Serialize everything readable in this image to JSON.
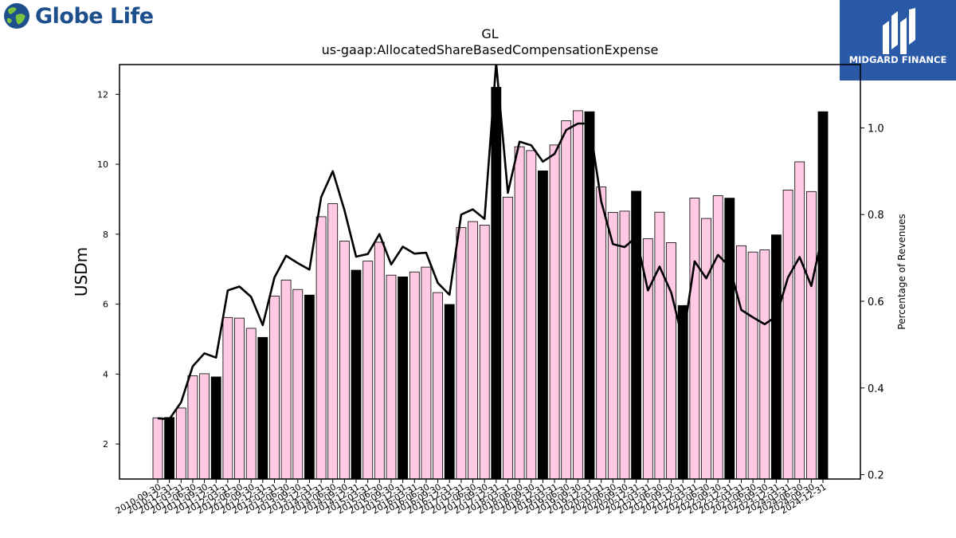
{
  "brand": {
    "left_name": "Globe Life",
    "right_name": "MIDGARD FINANCE"
  },
  "chart_data": {
    "type": "bar",
    "title": "GL",
    "subtitle": "us-gaap:AllocatedShareBasedCompensationExpense",
    "ylabel": "USDm",
    "y2label": "Percentage of Revenues",
    "ylim": [
      1.0,
      12.85
    ],
    "y2lim": [
      0.19,
      1.146
    ],
    "yticks": [
      2,
      4,
      6,
      8,
      10,
      12
    ],
    "y2ticks": [
      "0.2",
      "0.4",
      "0.6",
      "0.8",
      "1.0"
    ],
    "colors": {
      "quarter_bar": "#ffc9e4",
      "annual_bar": "#000000",
      "line": "#000000"
    },
    "categories": [
      "2010-09-30",
      "2010-12-31",
      "2011-03-31",
      "2011-06-30",
      "2011-09-30",
      "2011-12-31",
      "2012-03-31",
      "2012-06-30",
      "2012-09-30",
      "2012-12-31",
      "2013-03-31",
      "2013-06-30",
      "2013-09-30",
      "2013-12-31",
      "2014-03-31",
      "2014-06-30",
      "2014-09-30",
      "2014-12-31",
      "2015-03-31",
      "2015-06-30",
      "2015-09-30",
      "2015-12-31",
      "2016-03-31",
      "2016-06-30",
      "2016-09-30",
      "2016-12-31",
      "2017-03-31",
      "2017-06-30",
      "2017-09-30",
      "2017-12-31",
      "2018-03-31",
      "2018-06-30",
      "2018-09-30",
      "2018-12-31",
      "2019-03-31",
      "2019-06-30",
      "2019-09-30",
      "2019-12-31",
      "2020-03-31",
      "2020-06-30",
      "2020-09-30",
      "2020-12-31",
      "2021-03-31",
      "2021-06-30",
      "2021-09-30",
      "2021-12-31",
      "2022-03-31",
      "2022-06-30",
      "2022-09-30",
      "2022-12-31",
      "2023-03-31",
      "2023-06-30",
      "2023-09-30",
      "2023-12-31",
      "2024-03-31",
      "2024-06-30",
      "2024-09-30",
      "2024-12-31"
    ],
    "series": [
      {
        "values": [
          2.75,
          2.76,
          3.03,
          3.95,
          4.01,
          3.92,
          5.62,
          5.6,
          5.31,
          5.05,
          6.23,
          6.69,
          6.42,
          6.26,
          8.5,
          8.87,
          7.8,
          6.97,
          7.23,
          7.77,
          6.83,
          6.78,
          6.92,
          7.06,
          6.33,
          5.99,
          8.19,
          8.36,
          8.26,
          12.2,
          9.06,
          10.5,
          10.39,
          9.81,
          10.55,
          11.24,
          11.53,
          11.5,
          9.35,
          8.62,
          8.66,
          9.23,
          7.87,
          8.63,
          7.76,
          5.96,
          9.03,
          8.45,
          9.1,
          9.03,
          7.67,
          7.49,
          7.55,
          7.98,
          9.26,
          10.07,
          9.22,
          11.5
        ],
        "annual": [
          false,
          true,
          false,
          false,
          false,
          true,
          false,
          false,
          false,
          true,
          false,
          false,
          false,
          true,
          false,
          false,
          false,
          true,
          false,
          false,
          false,
          true,
          false,
          false,
          false,
          true,
          false,
          false,
          false,
          true,
          false,
          false,
          false,
          true,
          false,
          false,
          false,
          true,
          false,
          false,
          false,
          true,
          false,
          false,
          false,
          true,
          false,
          false,
          false,
          true,
          false,
          false,
          false,
          true,
          false,
          false,
          false,
          true
        ]
      },
      {
        "values": [
          0.33,
          0.328,
          0.367,
          0.45,
          0.48,
          0.47,
          0.625,
          0.634,
          0.61,
          0.545,
          0.655,
          0.705,
          0.688,
          0.673,
          0.84,
          0.9,
          0.81,
          0.703,
          0.709,
          0.755,
          0.685,
          0.726,
          0.71,
          0.712,
          0.642,
          0.615,
          0.8,
          0.812,
          0.79,
          1.15,
          0.85,
          0.968,
          0.96,
          0.922,
          0.94,
          0.995,
          1.01,
          1.01,
          0.83,
          0.732,
          0.725,
          0.748,
          0.625,
          0.68,
          0.62,
          0.51,
          0.692,
          0.653,
          0.707,
          0.68,
          0.58,
          0.563,
          0.547,
          0.565,
          0.655,
          0.702,
          0.635,
          0.76
        ]
      }
    ]
  }
}
